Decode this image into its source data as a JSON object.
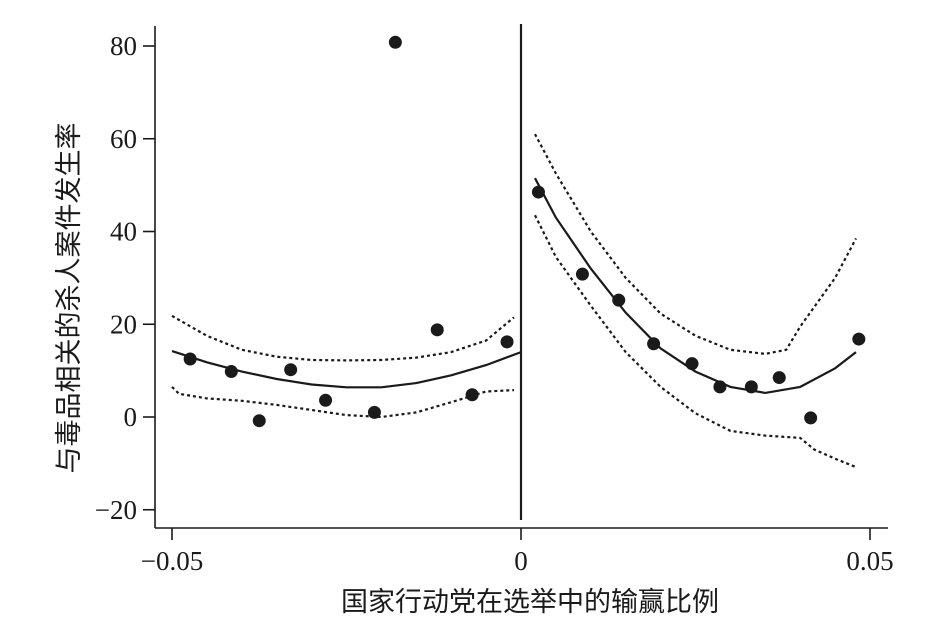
{
  "chart_data": {
    "type": "scatter",
    "title": "",
    "xlabel": "国家行动党在选举中的输赢比例",
    "ylabel": "与毒品相关的杀人案件发生率",
    "xlim": [
      -0.05,
      0.05
    ],
    "ylim": [
      -20,
      80
    ],
    "x_ticks": [
      -0.05,
      0,
      0.05
    ],
    "x_tick_labels": [
      "−0.05",
      "0",
      "0.05"
    ],
    "y_ticks": [
      -20,
      0,
      20,
      40,
      60,
      80
    ],
    "y_tick_labels": [
      "−20",
      "0",
      "20",
      "40",
      "60",
      "80"
    ],
    "cutoff": 0,
    "grid": false,
    "legend": "none",
    "points": [
      {
        "x": -0.0474,
        "y": 12.5
      },
      {
        "x": -0.0415,
        "y": 9.8
      },
      {
        "x": -0.0375,
        "y": -0.8
      },
      {
        "x": -0.033,
        "y": 10.2
      },
      {
        "x": -0.028,
        "y": 3.6
      },
      {
        "x": -0.021,
        "y": 1.0
      },
      {
        "x": -0.018,
        "y": 80.8
      },
      {
        "x": -0.012,
        "y": 18.8
      },
      {
        "x": -0.007,
        "y": 4.8
      },
      {
        "x": -0.002,
        "y": 16.2
      },
      {
        "x": 0.0025,
        "y": 48.5
      },
      {
        "x": 0.0088,
        "y": 30.8
      },
      {
        "x": 0.014,
        "y": 25.2
      },
      {
        "x": 0.019,
        "y": 15.8
      },
      {
        "x": 0.0245,
        "y": 11.5
      },
      {
        "x": 0.0285,
        "y": 6.5
      },
      {
        "x": 0.033,
        "y": 6.5
      },
      {
        "x": 0.037,
        "y": 8.5
      },
      {
        "x": 0.0415,
        "y": -0.2
      },
      {
        "x": 0.0484,
        "y": 16.8
      }
    ],
    "fit_left": {
      "x": [
        -0.05,
        -0.045,
        -0.04,
        -0.035,
        -0.03,
        -0.025,
        -0.02,
        -0.015,
        -0.01,
        -0.005,
        0.0
      ],
      "y": [
        14.2,
        11.8,
        9.8,
        8.2,
        7.0,
        6.4,
        6.4,
        7.3,
        9.0,
        11.2,
        14.0
      ]
    },
    "fit_right": {
      "x": [
        0.002,
        0.005,
        0.01,
        0.015,
        0.02,
        0.025,
        0.03,
        0.035,
        0.04,
        0.045,
        0.048
      ],
      "y": [
        51.5,
        43.0,
        32.0,
        22.5,
        14.8,
        9.8,
        6.5,
        5.2,
        6.5,
        10.5,
        14.0
      ]
    },
    "ci_upper_left": {
      "x": [
        -0.05,
        -0.045,
        -0.04,
        -0.035,
        -0.03,
        -0.025,
        -0.02,
        -0.015,
        -0.01,
        -0.005,
        -0.001
      ],
      "y": [
        21.8,
        17.5,
        14.5,
        13.0,
        12.3,
        12.2,
        12.3,
        12.8,
        14.0,
        16.5,
        21.5
      ]
    },
    "ci_lower_left": {
      "x": [
        -0.05,
        -0.049,
        -0.045,
        -0.04,
        -0.035,
        -0.03,
        -0.025,
        -0.02,
        -0.015,
        -0.01,
        -0.005,
        -0.001
      ],
      "y": [
        6.5,
        5.0,
        4.0,
        3.5,
        2.6,
        1.5,
        0.4,
        0.0,
        1.0,
        3.2,
        5.5,
        5.8
      ]
    },
    "ci_upper_right": {
      "x": [
        0.002,
        0.005,
        0.01,
        0.015,
        0.02,
        0.025,
        0.03,
        0.035,
        0.038,
        0.04,
        0.045,
        0.048
      ],
      "y": [
        61.0,
        52.5,
        40.0,
        30.0,
        22.3,
        17.5,
        14.5,
        13.6,
        14.5,
        19.5,
        30.0,
        38.5
      ]
    },
    "ci_lower_right": {
      "x": [
        0.002,
        0.005,
        0.01,
        0.015,
        0.02,
        0.025,
        0.03,
        0.035,
        0.04,
        0.042,
        0.045,
        0.048
      ],
      "y": [
        43.5,
        34.5,
        24.0,
        14.0,
        6.5,
        0.8,
        -3.0,
        -4.0,
        -4.5,
        -7.0,
        -9.0,
        -10.8
      ]
    }
  }
}
